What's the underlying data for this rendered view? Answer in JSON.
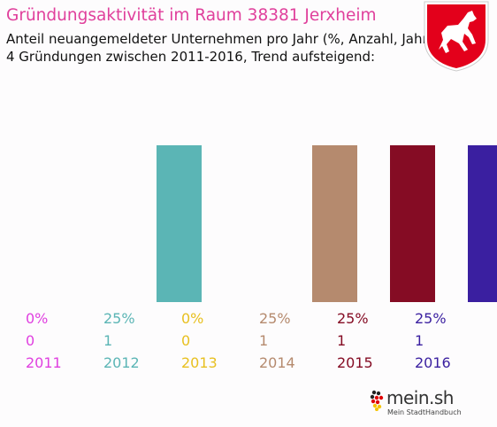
{
  "header": {
    "title": "Gründungsaktivität im Raum 38381 Jerxheim",
    "subtitle_line1": "Anteil neuangemeldeter Unternehmen pro Jahr (%, Anzahl, Jahr)",
    "subtitle_line2": "4 Gründungen zwischen 2011-2016, Trend aufsteigend:"
  },
  "crest": {
    "icon": "lower-saxony-horse-crest-icon",
    "color": "#e3001b"
  },
  "logo": {
    "main": "mein.sh",
    "tagline": "Mein StadtHandbuch",
    "icon": "germany-flag-dots-icon"
  },
  "colors": {
    "title": "#e0409c"
  },
  "chart_data": {
    "type": "bar",
    "categories": [
      "2011",
      "2012",
      "2013",
      "2014",
      "2015",
      "2016"
    ],
    "values": [
      0,
      25,
      0,
      25,
      25,
      25
    ],
    "percent_labels": [
      "0%",
      "25%",
      "0%",
      "25%",
      "25%",
      "25%"
    ],
    "count_labels": [
      "0",
      "1",
      "0",
      "1",
      "1",
      "1"
    ],
    "counts": [
      0,
      1,
      0,
      1,
      1,
      1
    ],
    "colors": [
      "#e040e0",
      "#5bb5b5",
      "#e8c020",
      "#b58a6e",
      "#850c24",
      "#3a1fa0"
    ],
    "ylim": [
      0,
      25
    ],
    "grid": false,
    "legend": "none"
  }
}
